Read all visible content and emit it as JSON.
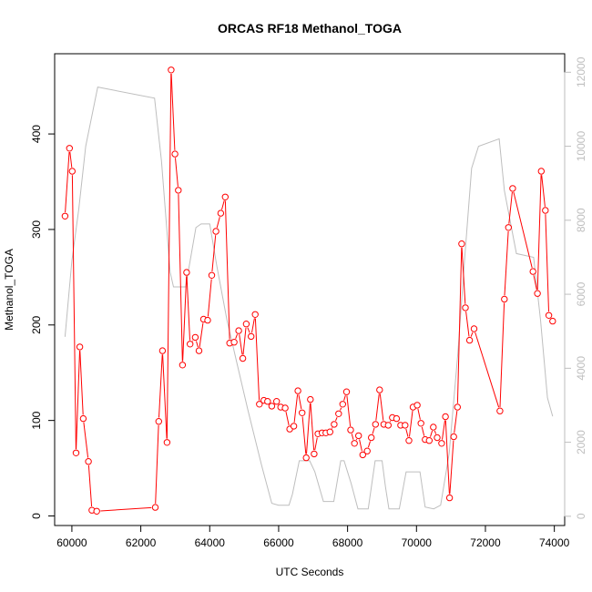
{
  "chart_data": {
    "type": "line",
    "title": "ORCAS RF18 Methanol_TOGA",
    "xlabel": "UTC Seconds",
    "ylabel": "Methanol_TOGA",
    "xlim": [
      59500,
      74300
    ],
    "ylim": [
      -10,
      484
    ],
    "x_ticks": [
      60000,
      62000,
      64000,
      66000,
      68000,
      70000,
      72000,
      74000
    ],
    "x_tick_labels": [
      "60000",
      "62000",
      "64000",
      "66000",
      "68000",
      "70000",
      "72000",
      "74000"
    ],
    "y_ticks": [
      0,
      100,
      200,
      300,
      400
    ],
    "y_tick_labels": [
      "0",
      "100",
      "200",
      "300",
      "400"
    ],
    "y2lim": [
      -250,
      12500
    ],
    "y2_ticks": [
      0,
      2000,
      4000,
      6000,
      8000,
      10000,
      12000
    ],
    "y2_tick_labels": [
      "0",
      "2000",
      "4000",
      "6000",
      "8000",
      "10000",
      "12000"
    ],
    "grid": false,
    "colors": {
      "methanol": "#ff0000",
      "secondary": "#bebebe",
      "axis": "#000000",
      "right_axis": "#bebebe"
    },
    "series": [
      {
        "axis": "left",
        "style": "line-points",
        "points": [
          [
            59800,
            314
          ],
          [
            59930,
            385
          ],
          [
            60010,
            361
          ],
          [
            60120,
            66
          ],
          [
            60230,
            177
          ],
          [
            60330,
            102
          ],
          [
            60480,
            57
          ],
          [
            60580,
            6
          ],
          [
            60720,
            5
          ],
          [
            62420,
            9
          ],
          [
            62520,
            99
          ],
          [
            62630,
            173
          ],
          [
            62760,
            77
          ],
          [
            62880,
            467
          ],
          [
            62990,
            379
          ],
          [
            63090,
            341
          ],
          [
            63210,
            158
          ],
          [
            63330,
            255
          ],
          [
            63430,
            180
          ],
          [
            63580,
            187
          ],
          [
            63690,
            173
          ],
          [
            63820,
            206
          ],
          [
            63940,
            205
          ],
          [
            64060,
            252
          ],
          [
            64180,
            298
          ],
          [
            64320,
            317
          ],
          [
            64450,
            334
          ],
          [
            64580,
            181
          ],
          [
            64710,
            182
          ],
          [
            64840,
            194
          ],
          [
            64960,
            165
          ],
          [
            65060,
            201
          ],
          [
            65200,
            188
          ],
          [
            65320,
            211
          ],
          [
            65440,
            117
          ],
          [
            65570,
            121
          ],
          [
            65680,
            120
          ],
          [
            65800,
            115
          ],
          [
            65940,
            120
          ],
          [
            66060,
            114
          ],
          [
            66190,
            113
          ],
          [
            66320,
            91
          ],
          [
            66440,
            94
          ],
          [
            66560,
            131
          ],
          [
            66680,
            108
          ],
          [
            66800,
            61
          ],
          [
            66920,
            122
          ],
          [
            67030,
            65
          ],
          [
            67140,
            86
          ],
          [
            67260,
            87
          ],
          [
            67370,
            87
          ],
          [
            67490,
            88
          ],
          [
            67610,
            96
          ],
          [
            67740,
            107
          ],
          [
            67860,
            117
          ],
          [
            67970,
            130
          ],
          [
            68090,
            90
          ],
          [
            68200,
            76
          ],
          [
            68320,
            84
          ],
          [
            68440,
            64
          ],
          [
            68570,
            68
          ],
          [
            68690,
            82
          ],
          [
            68810,
            96
          ],
          [
            68930,
            132
          ],
          [
            69050,
            96
          ],
          [
            69180,
            95
          ],
          [
            69300,
            103
          ],
          [
            69420,
            102
          ],
          [
            69540,
            95
          ],
          [
            69670,
            95
          ],
          [
            69780,
            79
          ],
          [
            69900,
            114
          ],
          [
            70020,
            116
          ],
          [
            70130,
            97
          ],
          [
            70250,
            80
          ],
          [
            70370,
            79
          ],
          [
            70490,
            93
          ],
          [
            70600,
            82
          ],
          [
            70730,
            76
          ],
          [
            70840,
            104
          ],
          [
            70960,
            19
          ],
          [
            71080,
            83
          ],
          [
            71190,
            114
          ],
          [
            71310,
            285
          ],
          [
            71420,
            218
          ],
          [
            71540,
            184
          ],
          [
            71670,
            196
          ],
          [
            72420,
            110
          ],
          [
            72550,
            227
          ],
          [
            72670,
            302
          ],
          [
            72790,
            343
          ],
          [
            73380,
            256
          ],
          [
            73510,
            233
          ],
          [
            73620,
            361
          ],
          [
            73740,
            320
          ],
          [
            73840,
            210
          ],
          [
            73950,
            204
          ]
        ]
      },
      {
        "axis": "right",
        "style": "line",
        "points": [
          [
            59800,
            4850
          ],
          [
            60000,
            6900
          ],
          [
            60200,
            8300
          ],
          [
            60400,
            10000
          ],
          [
            60750,
            11600
          ],
          [
            62400,
            11300
          ],
          [
            62600,
            9600
          ],
          [
            62850,
            6600
          ],
          [
            62950,
            6200
          ],
          [
            63300,
            6200
          ],
          [
            63600,
            7800
          ],
          [
            63750,
            7900
          ],
          [
            64000,
            7900
          ],
          [
            64200,
            6800
          ],
          [
            64500,
            5300
          ],
          [
            64800,
            4100
          ],
          [
            65100,
            2900
          ],
          [
            65500,
            1400
          ],
          [
            65800,
            350
          ],
          [
            66000,
            300
          ],
          [
            66300,
            300
          ],
          [
            66400,
            600
          ],
          [
            66600,
            1500
          ],
          [
            66900,
            1500
          ],
          [
            67050,
            1200
          ],
          [
            67300,
            400
          ],
          [
            67600,
            400
          ],
          [
            67800,
            1500
          ],
          [
            67900,
            1500
          ],
          [
            68100,
            900
          ],
          [
            68300,
            200
          ],
          [
            68600,
            200
          ],
          [
            68800,
            1500
          ],
          [
            69000,
            1500
          ],
          [
            69100,
            800
          ],
          [
            69200,
            200
          ],
          [
            69500,
            200
          ],
          [
            69700,
            1200
          ],
          [
            70000,
            1200
          ],
          [
            70100,
            1200
          ],
          [
            70250,
            250
          ],
          [
            70500,
            200
          ],
          [
            70700,
            300
          ],
          [
            70950,
            1700
          ],
          [
            71200,
            4400
          ],
          [
            71400,
            7000
          ],
          [
            71600,
            9400
          ],
          [
            71800,
            10000
          ],
          [
            72400,
            10200
          ],
          [
            72550,
            8800
          ],
          [
            72900,
            7100
          ],
          [
            73400,
            7000
          ],
          [
            73600,
            5300
          ],
          [
            73800,
            3200
          ],
          [
            73950,
            2700
          ]
        ]
      }
    ]
  }
}
